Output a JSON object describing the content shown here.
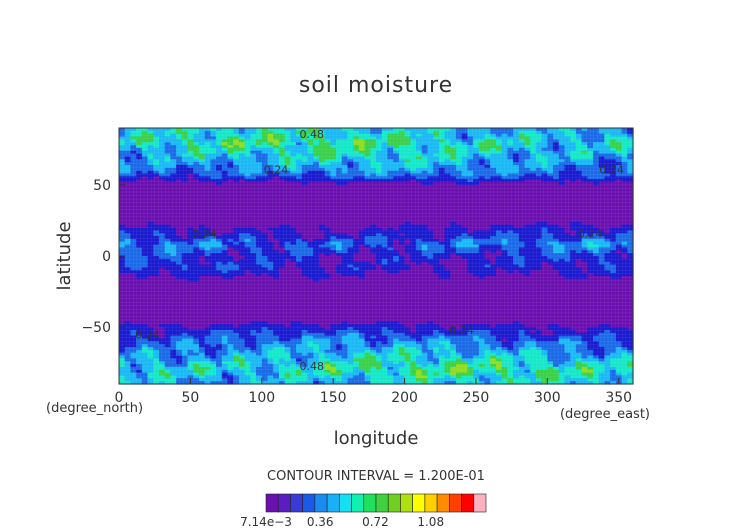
{
  "chart_data": {
    "type": "heatmap",
    "title": "soil moisture",
    "xlabel": "longitude",
    "ylabel": "latitude",
    "x_unit": "(degree_east)",
    "y_unit": "(degree_north)",
    "xlim": [
      0,
      360
    ],
    "ylim": [
      -90,
      90
    ],
    "x_ticks": [
      0,
      50,
      100,
      150,
      200,
      250,
      300,
      350
    ],
    "y_ticks": [
      -50,
      0,
      50
    ],
    "x_tick_labels": [
      "0",
      "50",
      "100",
      "150",
      "200",
      "250",
      "300",
      "350"
    ],
    "y_tick_labels": [
      "−50",
      "0",
      "50"
    ],
    "contour_interval_text": "CONTOUR INTERVAL = 1.200E-01",
    "contour_labels": [
      {
        "text": "0.48",
        "lon": 135,
        "lat": 83
      },
      {
        "text": "0.24",
        "lon": 110,
        "lat": 58
      },
      {
        "text": "0.24",
        "lon": 345,
        "lat": 58
      },
      {
        "text": "0.24",
        "lon": 60,
        "lat": 13
      },
      {
        "text": "0.24",
        "lon": 330,
        "lat": 13
      },
      {
        "text": "0.24",
        "lon": 20,
        "lat": -58
      },
      {
        "text": "0.24",
        "lon": 240,
        "lat": -55
      },
      {
        "text": "0.48",
        "lon": 135,
        "lat": -80
      }
    ],
    "colorbar": {
      "colors": [
        "#6a0fb0",
        "#5a1ec0",
        "#3a3ad8",
        "#1a5ae8",
        "#1a8cf0",
        "#1ab0f5",
        "#14e0f0",
        "#10f0b0",
        "#20e060",
        "#40d040",
        "#70d020",
        "#b0e010",
        "#ffff00",
        "#ffd000",
        "#ff8c00",
        "#ff4000",
        "#ff0000",
        "#ffb0c0"
      ],
      "min": 0.00714,
      "max": 1.44,
      "labels": [
        "7.14e−3",
        "0.36",
        "0.72",
        "1.08"
      ],
      "label_values": [
        0.00714,
        0.36,
        0.72,
        1.08
      ]
    },
    "zonal_profile": [
      {
        "lat": -90,
        "level": 3,
        "variability": 1.5
      },
      {
        "lat": -80,
        "level": 4,
        "variability": 2.0
      },
      {
        "lat": -70,
        "level": 3,
        "variability": 1.8
      },
      {
        "lat": -60,
        "level": 2,
        "variability": 1.4
      },
      {
        "lat": -52,
        "level": 1,
        "variability": 0.8
      },
      {
        "lat": -45,
        "level": 0,
        "variability": 0.2
      },
      {
        "lat": -30,
        "level": 0,
        "variability": 0.1
      },
      {
        "lat": -18,
        "level": 0,
        "variability": 0.4
      },
      {
        "lat": -8,
        "level": 1,
        "variability": 1.0
      },
      {
        "lat": 0,
        "level": 1,
        "variability": 1.2
      },
      {
        "lat": 8,
        "level": 2,
        "variability": 1.6
      },
      {
        "lat": 15,
        "level": 1,
        "variability": 1.0
      },
      {
        "lat": 25,
        "level": 0,
        "variability": 0.3
      },
      {
        "lat": 40,
        "level": 0,
        "variability": 0.1
      },
      {
        "lat": 50,
        "level": 0,
        "variability": 0.3
      },
      {
        "lat": 58,
        "level": 2,
        "variability": 1.2
      },
      {
        "lat": 68,
        "level": 3,
        "variability": 1.8
      },
      {
        "lat": 80,
        "level": 4,
        "variability": 2.0
      },
      {
        "lat": 90,
        "level": 3,
        "variability": 1.5
      }
    ]
  }
}
